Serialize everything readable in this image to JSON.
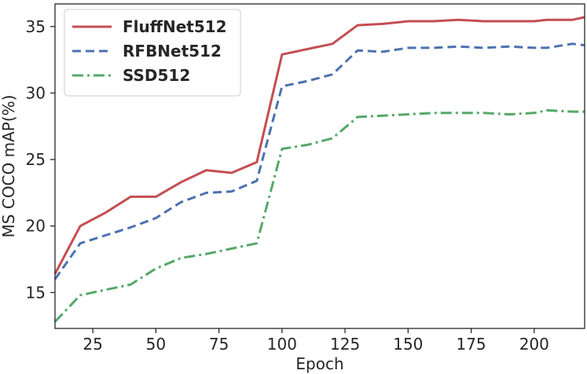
{
  "chart_data": {
    "type": "line",
    "title": "",
    "xlabel": "Epoch",
    "ylabel": "MS COCO mAP(%)",
    "xlim": [
      10,
      220
    ],
    "ylim": [
      12.3,
      36.7
    ],
    "xticks": [
      25,
      50,
      75,
      100,
      125,
      150,
      175,
      200
    ],
    "yticks": [
      15,
      20,
      25,
      30,
      35
    ],
    "grid": false,
    "legend_position": "upper-left",
    "series": [
      {
        "name": "FluffNet512",
        "color": "#c44e52",
        "dash": "solid",
        "points": [
          [
            10,
            16.4
          ],
          [
            20,
            20.0
          ],
          [
            30,
            21.0
          ],
          [
            40,
            22.2
          ],
          [
            50,
            22.2
          ],
          [
            60,
            23.3
          ],
          [
            70,
            24.2
          ],
          [
            80,
            24.0
          ],
          [
            90,
            24.8
          ],
          [
            100,
            32.9
          ],
          [
            110,
            33.3
          ],
          [
            120,
            33.7
          ],
          [
            130,
            35.1
          ],
          [
            140,
            35.2
          ],
          [
            150,
            35.4
          ],
          [
            160,
            35.4
          ],
          [
            170,
            35.5
          ],
          [
            180,
            35.4
          ],
          [
            190,
            35.4
          ],
          [
            200,
            35.4
          ],
          [
            205,
            35.5
          ],
          [
            215,
            35.5
          ],
          [
            220,
            35.7
          ]
        ]
      },
      {
        "name": "RFBNet512",
        "color": "#4c72b0",
        "dash": "dashed",
        "points": [
          [
            10,
            16.0
          ],
          [
            20,
            18.7
          ],
          [
            30,
            19.3
          ],
          [
            40,
            19.9
          ],
          [
            50,
            20.6
          ],
          [
            60,
            21.8
          ],
          [
            70,
            22.5
          ],
          [
            80,
            22.6
          ],
          [
            90,
            23.4
          ],
          [
            100,
            30.5
          ],
          [
            110,
            30.9
          ],
          [
            120,
            31.4
          ],
          [
            130,
            33.2
          ],
          [
            140,
            33.1
          ],
          [
            150,
            33.4
          ],
          [
            160,
            33.4
          ],
          [
            170,
            33.5
          ],
          [
            180,
            33.4
          ],
          [
            190,
            33.5
          ],
          [
            200,
            33.4
          ],
          [
            205,
            33.4
          ],
          [
            215,
            33.7
          ],
          [
            220,
            33.6
          ]
        ]
      },
      {
        "name": "SSD512",
        "color": "#55a868",
        "dash": "dashdot",
        "points": [
          [
            10,
            12.8
          ],
          [
            20,
            14.8
          ],
          [
            30,
            15.2
          ],
          [
            40,
            15.6
          ],
          [
            50,
            16.8
          ],
          [
            60,
            17.6
          ],
          [
            70,
            17.9
          ],
          [
            80,
            18.3
          ],
          [
            90,
            18.7
          ],
          [
            100,
            25.8
          ],
          [
            110,
            26.1
          ],
          [
            120,
            26.6
          ],
          [
            130,
            28.2
          ],
          [
            140,
            28.3
          ],
          [
            150,
            28.4
          ],
          [
            160,
            28.5
          ],
          [
            170,
            28.5
          ],
          [
            180,
            28.5
          ],
          [
            190,
            28.4
          ],
          [
            200,
            28.5
          ],
          [
            205,
            28.7
          ],
          [
            215,
            28.6
          ],
          [
            220,
            28.6
          ]
        ]
      }
    ]
  }
}
